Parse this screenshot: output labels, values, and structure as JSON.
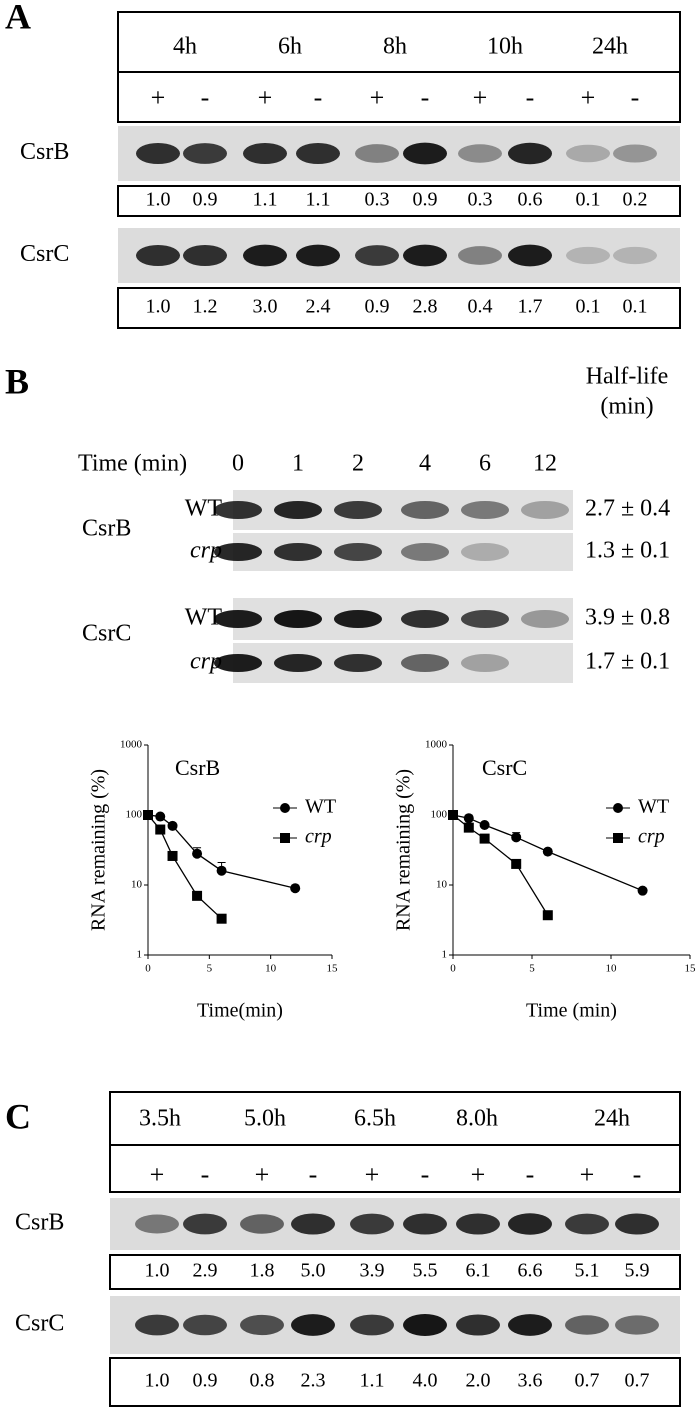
{
  "panel_a": {
    "label": "A",
    "times": [
      "4h",
      "6h",
      "8h",
      "10h",
      "24h"
    ],
    "treatments": [
      "+",
      "-",
      "+",
      "-",
      "+",
      "-",
      "+",
      "-",
      "+",
      "-"
    ],
    "rows": [
      {
        "name": "CsrB",
        "values": [
          "1.0",
          "0.9",
          "1.1",
          "1.1",
          "0.3",
          "0.9",
          "0.3",
          "0.6",
          "0.1",
          "0.2"
        ]
      },
      {
        "name": "CsrC",
        "values": [
          "1.0",
          "1.2",
          "3.0",
          "2.4",
          "0.9",
          "2.8",
          "0.4",
          "1.7",
          "0.1",
          "0.1"
        ]
      }
    ]
  },
  "panel_b": {
    "label": "B",
    "half_life_header": "Half-life",
    "half_life_unit": "(min)",
    "time_label": "Time (min)",
    "times": [
      "0",
      "1",
      "2",
      "4",
      "6",
      "12"
    ],
    "rows": [
      {
        "rna": "CsrB",
        "strains": [
          {
            "name": "WT",
            "half_life": "2.7 ± 0.4"
          },
          {
            "name": "crp",
            "half_life": "1.3 ± 0.1"
          }
        ]
      },
      {
        "rna": "CsrC",
        "strains": [
          {
            "name": "WT",
            "half_life": "3.9 ± 0.8"
          },
          {
            "name": "crp",
            "half_life": "1.7 ± 0.1"
          }
        ]
      }
    ]
  },
  "chart_data": [
    {
      "type": "line",
      "title": "CsrB",
      "x_label": "Time(min)",
      "y_label": "RNA remaining (%)",
      "log_y": true,
      "xlim": [
        0,
        15
      ],
      "ylim": [
        1,
        1000
      ],
      "xticks": [
        0,
        5,
        10,
        15
      ],
      "yticks": [
        1,
        10,
        100,
        1000
      ],
      "series": [
        {
          "name": "WT",
          "color": "#000000",
          "marker": "circle",
          "x": [
            0,
            1,
            2,
            4,
            6,
            12
          ],
          "values": [
            100,
            95,
            70,
            28,
            16,
            9
          ],
          "errors": [
            null,
            null,
            null,
            6,
            5,
            null
          ]
        },
        {
          "name": "crp",
          "color": "#000000",
          "marker": "square",
          "x": [
            0,
            1,
            2,
            4,
            6
          ],
          "values": [
            100,
            62,
            26,
            7,
            3.3
          ],
          "errors": [
            null,
            null,
            null,
            null,
            null
          ]
        }
      ]
    },
    {
      "type": "line",
      "title": "CsrC",
      "x_label": "Time (min)",
      "y_label": "RNA remaining (%)",
      "log_y": true,
      "xlim": [
        0,
        15
      ],
      "ylim": [
        1,
        1000
      ],
      "xticks": [
        0,
        5,
        10,
        15
      ],
      "yticks": [
        1,
        10,
        100,
        1000
      ],
      "series": [
        {
          "name": "WT",
          "color": "#000000",
          "marker": "circle",
          "x": [
            0,
            1,
            2,
            4,
            6,
            12
          ],
          "values": [
            100,
            90,
            72,
            48,
            30,
            8.3
          ],
          "errors": [
            null,
            null,
            null,
            8,
            null,
            null
          ]
        },
        {
          "name": "crp",
          "color": "#000000",
          "marker": "square",
          "x": [
            0,
            1,
            2,
            4,
            6
          ],
          "values": [
            100,
            66,
            46,
            20,
            3.7
          ],
          "errors": [
            null,
            null,
            null,
            null,
            null
          ]
        }
      ]
    }
  ],
  "panel_c": {
    "label": "C",
    "times": [
      "3.5h",
      "5.0h",
      "6.5h",
      "8.0h",
      "24h"
    ],
    "treatments": [
      "+",
      "-",
      "+",
      "-",
      "+",
      "-",
      "+",
      "-",
      "+",
      "-"
    ],
    "rows": [
      {
        "name": "CsrB",
        "values": [
          "1.0",
          "2.9",
          "1.8",
          "5.0",
          "3.9",
          "5.5",
          "6.1",
          "6.6",
          "5.1",
          "5.9"
        ]
      },
      {
        "name": "CsrC",
        "values": [
          "1.0",
          "0.9",
          "0.8",
          "2.3",
          "1.1",
          "4.0",
          "2.0",
          "3.6",
          "0.7",
          "0.7"
        ]
      }
    ]
  }
}
